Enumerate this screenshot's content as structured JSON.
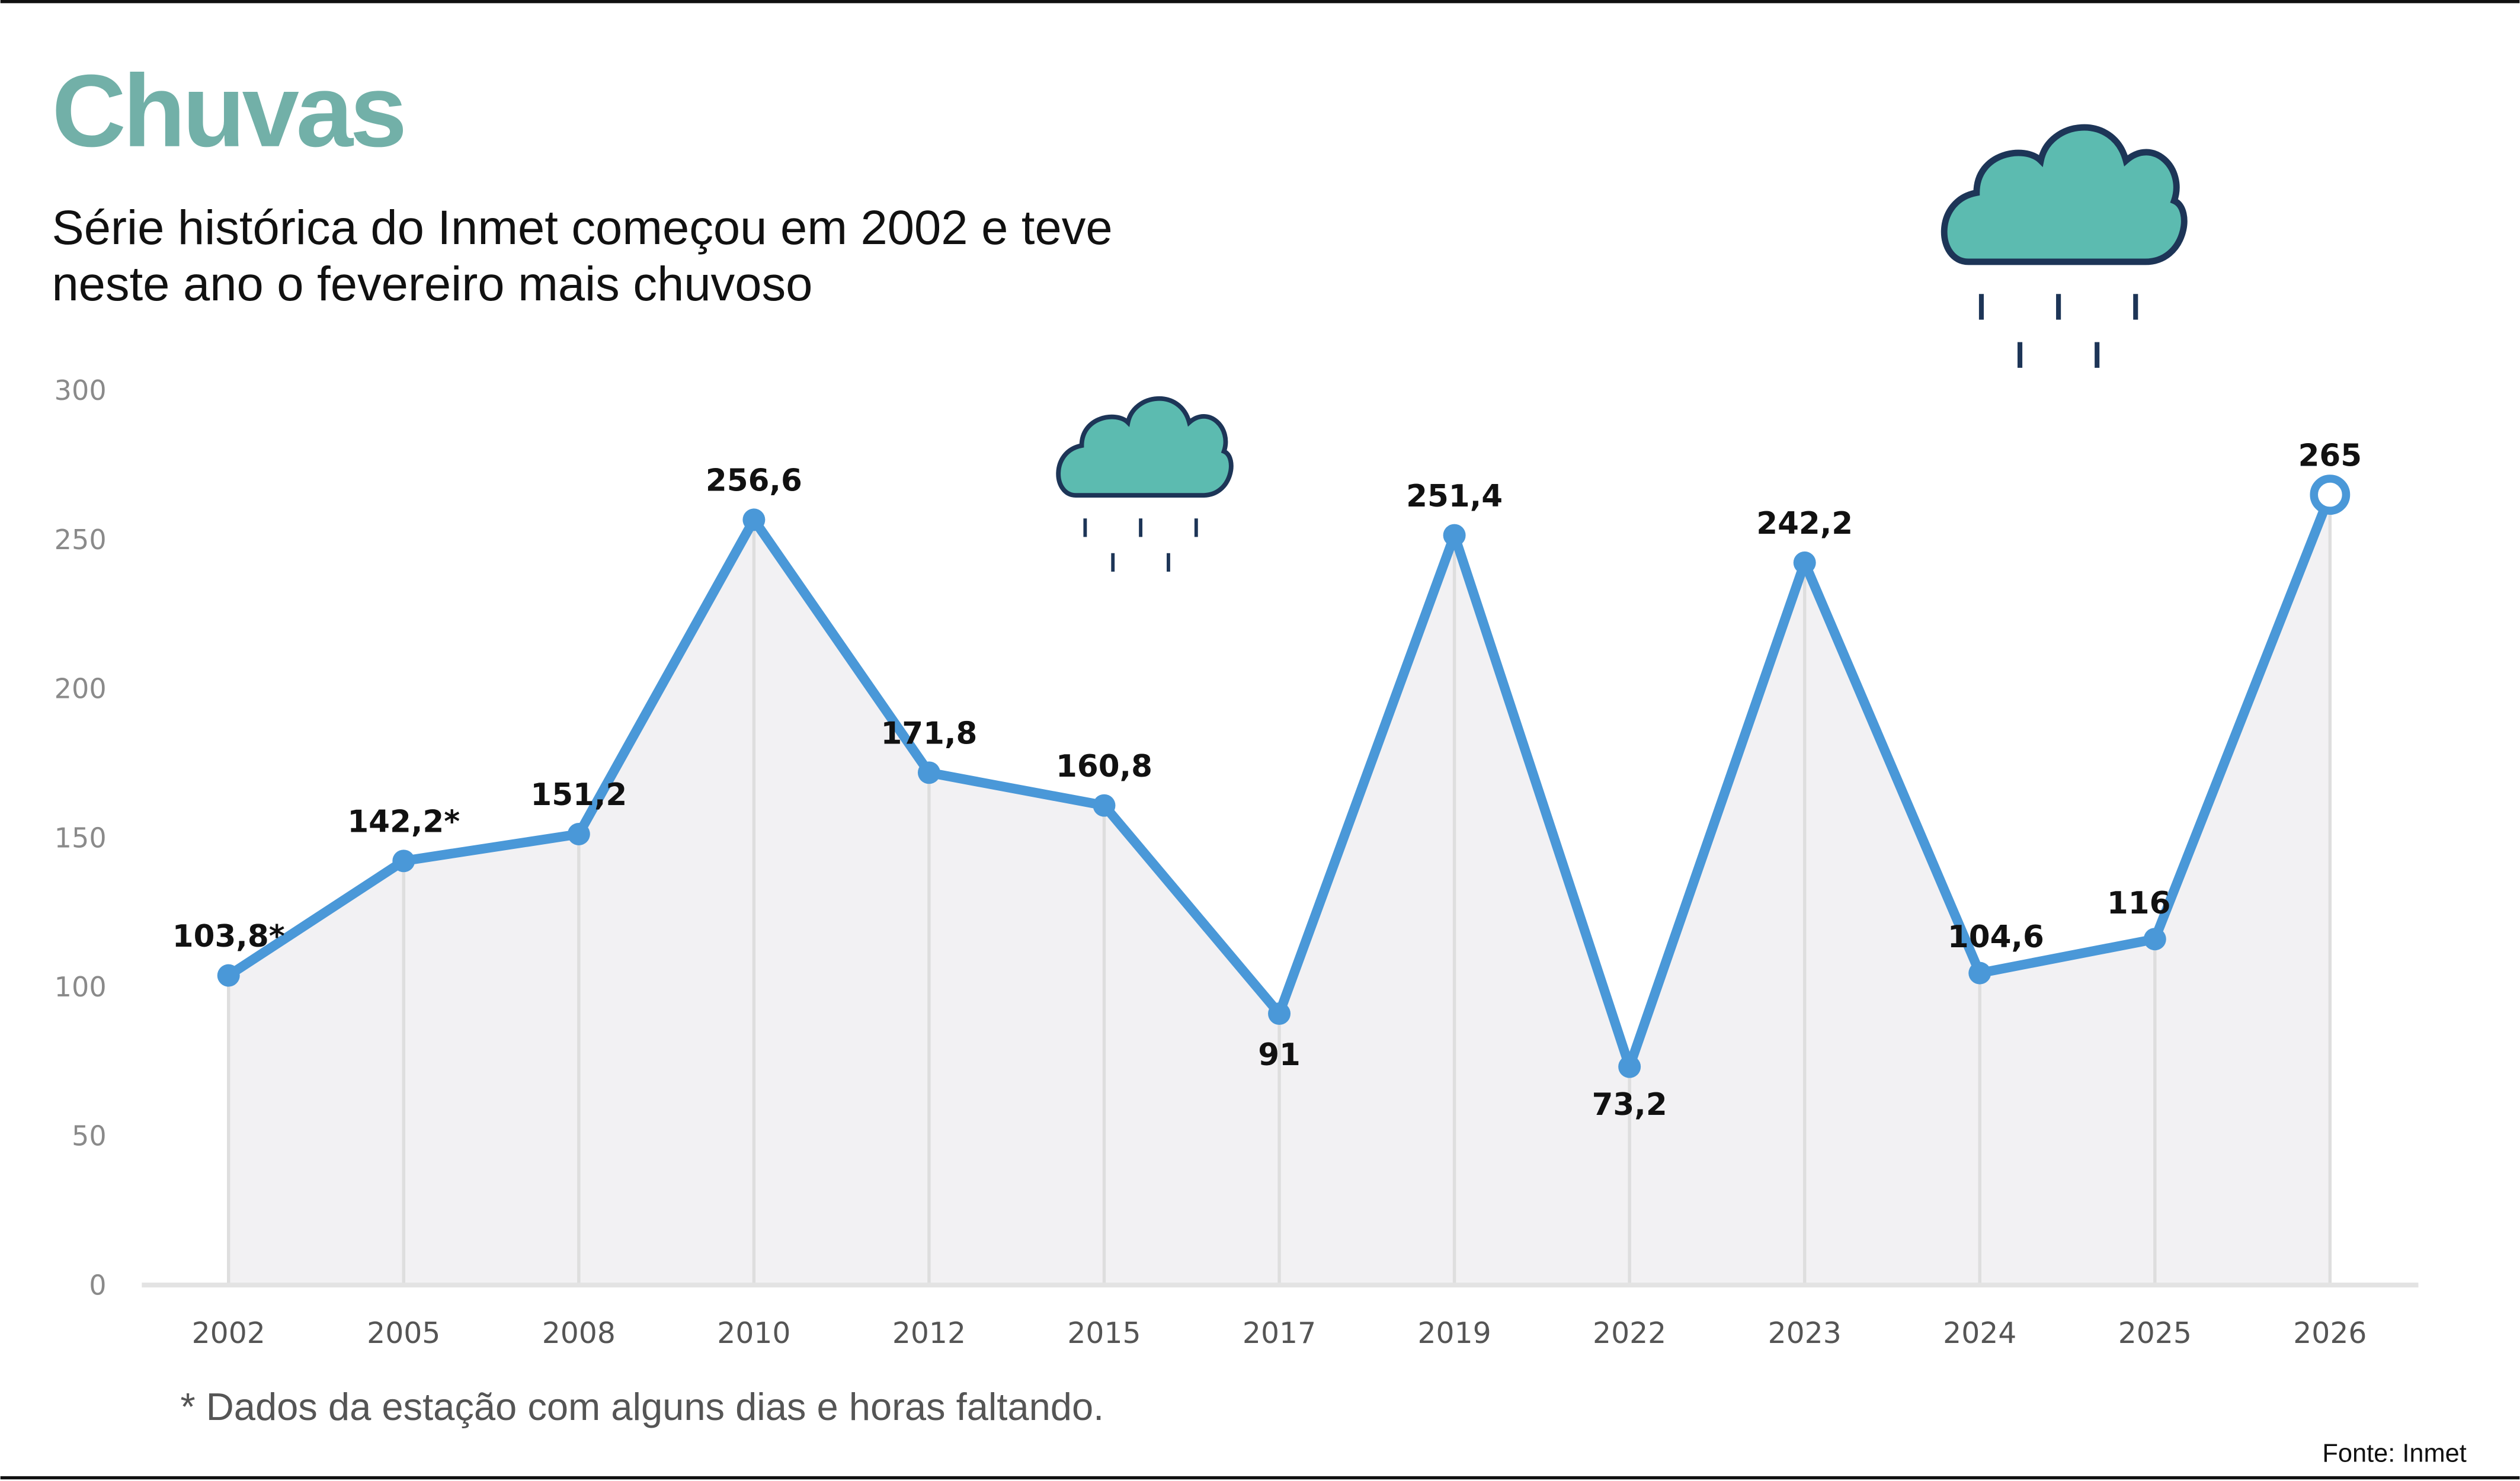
{
  "header": {
    "title": "Chuvas",
    "subtitle_line1": "Série histórica do Inmet começou em 2002 e teve",
    "subtitle_line2": "neste ano o fevereiro mais chuvoso"
  },
  "footer": {
    "note": "* Dados da estação com alguns dias e horas faltando.",
    "source": "Fonte: Inmet"
  },
  "icons": [
    "rain-cloud-icon-large",
    "rain-cloud-icon-small"
  ],
  "colors": {
    "title": "#72b0a8",
    "line": "#4a98d8",
    "area": "#f2f1f3",
    "cloud": "#5cbbb0",
    "cloud_outline": "#1d3557"
  },
  "chart_data": {
    "type": "line",
    "categories": [
      "2002",
      "2005",
      "2008",
      "2010",
      "2012",
      "2015",
      "2017",
      "2019",
      "2022",
      "2023",
      "2024",
      "2025",
      "2026"
    ],
    "values": [
      103.8,
      142.2,
      151.2,
      256.6,
      171.8,
      160.8,
      91,
      251.4,
      73.2,
      242.2,
      104.6,
      116,
      265
    ],
    "data_labels": [
      "103,8*",
      "142,2*",
      "151,2",
      "256,6",
      "171,8",
      "160,8",
      "91",
      "251,4",
      "73,2",
      "242,2",
      "104,6",
      "116",
      "265"
    ],
    "ylim": [
      0,
      300
    ],
    "yticks": [
      "0",
      "50",
      "100",
      "150",
      "200",
      "250",
      "300"
    ],
    "grid": false,
    "area_fill": true,
    "highlight_last_point": true
  }
}
